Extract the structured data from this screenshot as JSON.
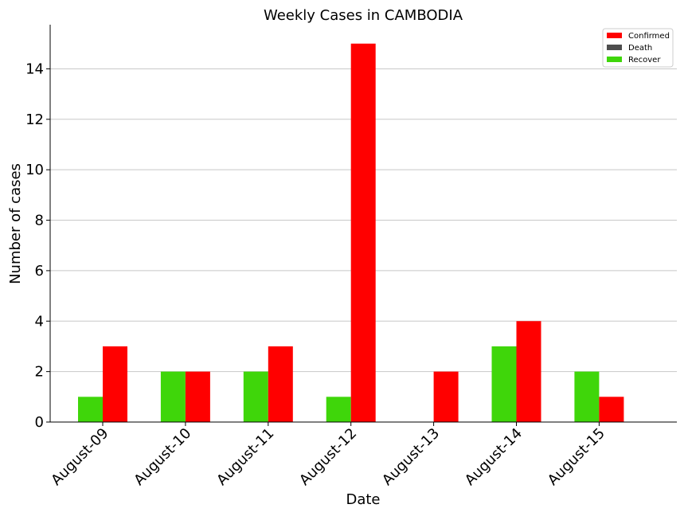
{
  "chart_data": {
    "type": "bar",
    "title": "Weekly Cases in CAMBODIA",
    "xlabel": "Date",
    "ylabel": "Number of cases",
    "categories": [
      "August-09",
      "August-10",
      "August-11",
      "August-12",
      "August-13",
      "August-14",
      "August-15"
    ],
    "series": [
      {
        "name": "Recover",
        "color": "#3fd60a",
        "values": [
          1,
          2,
          2,
          1,
          0,
          3,
          2
        ]
      },
      {
        "name": "Confirmed",
        "color": "#ff0000",
        "values": [
          3,
          2,
          3,
          15,
          2,
          4,
          1
        ]
      },
      {
        "name": "Death",
        "color": "#4d4d4d",
        "values": [
          0,
          0,
          0,
          0,
          0,
          0,
          0
        ]
      }
    ],
    "legend_order": [
      "Confirmed",
      "Death",
      "Recover"
    ],
    "yticks": [
      0,
      2,
      4,
      6,
      8,
      10,
      12,
      14
    ],
    "ylim": [
      0,
      15.75
    ],
    "grid": "horizontal",
    "legend_position": "top-right"
  }
}
